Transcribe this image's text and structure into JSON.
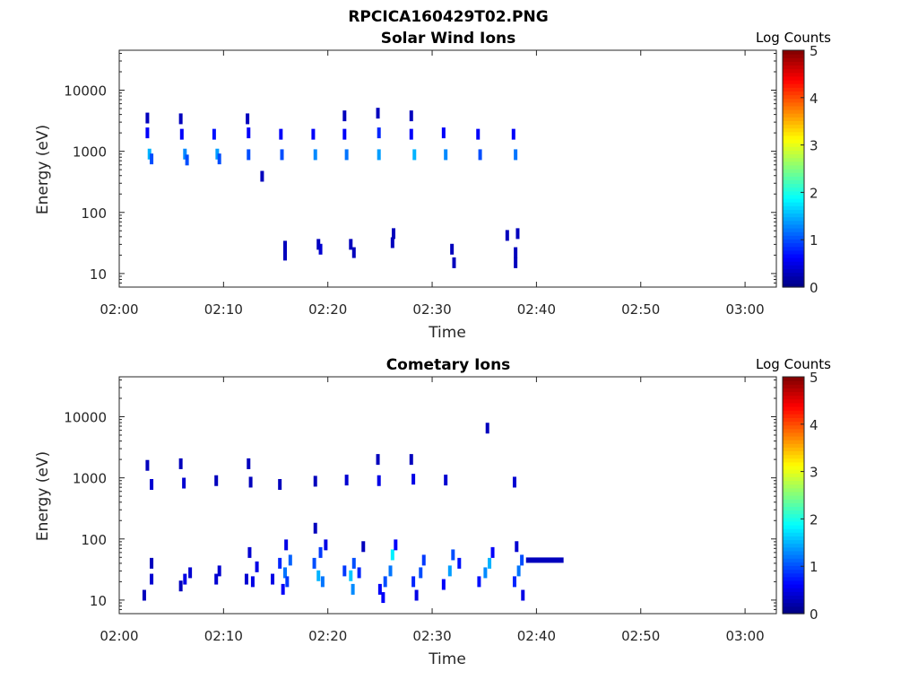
{
  "figure": {
    "title": "RPCICA160429T02.PNG"
  },
  "colorbar": {
    "label": "Log Counts",
    "ticks": [
      "0",
      "1",
      "2",
      "3",
      "4",
      "5"
    ],
    "range": [
      0,
      5
    ],
    "colormap": "jet"
  },
  "chart_data": [
    {
      "type": "heatmap",
      "title": "Solar Wind Ions",
      "xlabel": "Time",
      "ylabel": "Energy (eV)",
      "x_ticks": [
        "02:00",
        "02:10",
        "02:20",
        "02:30",
        "02:40",
        "02:50",
        "03:00"
      ],
      "y_ticks": [
        "10",
        "100",
        "1000",
        "10000"
      ],
      "xlim_minutes": [
        0,
        63
      ],
      "ylim_eV": [
        6,
        45000
      ],
      "yscale": "log",
      "colorbar_label": "Log Counts",
      "points": [
        {
          "t": 2.7,
          "e": 3500,
          "c": 0.3
        },
        {
          "t": 2.7,
          "e": 2000,
          "c": 0.6
        },
        {
          "t": 2.9,
          "e": 900,
          "c": 1.5
        },
        {
          "t": 3.1,
          "e": 750,
          "c": 1.0
        },
        {
          "t": 5.9,
          "e": 3400,
          "c": 0.3
        },
        {
          "t": 6.0,
          "e": 1900,
          "c": 0.6
        },
        {
          "t": 6.3,
          "e": 900,
          "c": 1.3
        },
        {
          "t": 6.5,
          "e": 720,
          "c": 1.0
        },
        {
          "t": 9.1,
          "e": 1900,
          "c": 0.7
        },
        {
          "t": 9.4,
          "e": 900,
          "c": 1.4
        },
        {
          "t": 9.6,
          "e": 750,
          "c": 1.0
        },
        {
          "t": 12.3,
          "e": 3400,
          "c": 0.3
        },
        {
          "t": 12.4,
          "e": 2000,
          "c": 0.6
        },
        {
          "t": 12.4,
          "e": 880,
          "c": 1.0
        },
        {
          "t": 13.7,
          "e": 390,
          "c": 0.3
        },
        {
          "t": 15.5,
          "e": 1900,
          "c": 0.6
        },
        {
          "t": 15.6,
          "e": 880,
          "c": 1.0
        },
        {
          "t": 18.6,
          "e": 1900,
          "c": 0.6
        },
        {
          "t": 18.8,
          "e": 880,
          "c": 1.3
        },
        {
          "t": 21.6,
          "e": 3800,
          "c": 0.3
        },
        {
          "t": 21.6,
          "e": 1900,
          "c": 0.6
        },
        {
          "t": 21.8,
          "e": 880,
          "c": 1.2
        },
        {
          "t": 24.8,
          "e": 4200,
          "c": 0.3
        },
        {
          "t": 24.9,
          "e": 2000,
          "c": 0.8
        },
        {
          "t": 24.9,
          "e": 880,
          "c": 1.4
        },
        {
          "t": 28.0,
          "e": 3800,
          "c": 0.3
        },
        {
          "t": 28.0,
          "e": 1900,
          "c": 0.6
        },
        {
          "t": 28.3,
          "e": 880,
          "c": 1.5
        },
        {
          "t": 31.1,
          "e": 2000,
          "c": 0.6
        },
        {
          "t": 31.3,
          "e": 880,
          "c": 1.3
        },
        {
          "t": 34.4,
          "e": 1900,
          "c": 0.6
        },
        {
          "t": 34.6,
          "e": 880,
          "c": 1.0
        },
        {
          "t": 37.8,
          "e": 1900,
          "c": 0.6
        },
        {
          "t": 38.0,
          "e": 880,
          "c": 1.2
        },
        {
          "t": 15.9,
          "e": 28,
          "c": 0.3
        },
        {
          "t": 15.9,
          "e": 20,
          "c": 0.3
        },
        {
          "t": 19.1,
          "e": 30,
          "c": 0.3
        },
        {
          "t": 19.3,
          "e": 25,
          "c": 0.4
        },
        {
          "t": 22.2,
          "e": 30,
          "c": 0.3
        },
        {
          "t": 22.5,
          "e": 22,
          "c": 0.3
        },
        {
          "t": 26.3,
          "e": 45,
          "c": 0.3
        },
        {
          "t": 26.2,
          "e": 32,
          "c": 0.3
        },
        {
          "t": 31.9,
          "e": 25,
          "c": 0.3
        },
        {
          "t": 32.1,
          "e": 15,
          "c": 0.3
        },
        {
          "t": 37.2,
          "e": 42,
          "c": 0.3
        },
        {
          "t": 38.2,
          "e": 45,
          "c": 0.3
        },
        {
          "t": 38.0,
          "e": 22,
          "c": 0.3
        },
        {
          "t": 38.0,
          "e": 15,
          "c": 0.3
        }
      ]
    },
    {
      "type": "heatmap",
      "title": "Cometary Ions",
      "xlabel": "Time",
      "ylabel": "Energy (eV)",
      "x_ticks": [
        "02:00",
        "02:10",
        "02:20",
        "02:30",
        "02:40",
        "02:50",
        "03:00"
      ],
      "y_ticks": [
        "10",
        "100",
        "1000",
        "10000"
      ],
      "xlim_minutes": [
        0,
        63
      ],
      "ylim_eV": [
        6,
        45000
      ],
      "yscale": "log",
      "colorbar_label": "Log Counts",
      "points": [
        {
          "t": 2.7,
          "e": 1600,
          "c": 0.3
        },
        {
          "t": 3.1,
          "e": 780,
          "c": 0.4
        },
        {
          "t": 5.9,
          "e": 1700,
          "c": 0.3
        },
        {
          "t": 6.2,
          "e": 820,
          "c": 0.4
        },
        {
          "t": 9.3,
          "e": 900,
          "c": 0.3
        },
        {
          "t": 12.4,
          "e": 1700,
          "c": 0.3
        },
        {
          "t": 12.6,
          "e": 850,
          "c": 0.3
        },
        {
          "t": 15.4,
          "e": 780,
          "c": 0.3
        },
        {
          "t": 18.8,
          "e": 880,
          "c": 0.3
        },
        {
          "t": 21.8,
          "e": 920,
          "c": 0.4
        },
        {
          "t": 24.8,
          "e": 2000,
          "c": 0.3
        },
        {
          "t": 24.9,
          "e": 900,
          "c": 0.5
        },
        {
          "t": 28.0,
          "e": 2000,
          "c": 0.3
        },
        {
          "t": 28.2,
          "e": 950,
          "c": 0.5
        },
        {
          "t": 31.3,
          "e": 920,
          "c": 0.4
        },
        {
          "t": 35.3,
          "e": 6500,
          "c": 0.3
        },
        {
          "t": 37.9,
          "e": 850,
          "c": 0.4
        },
        {
          "t": 2.4,
          "e": 12,
          "c": 0.3
        },
        {
          "t": 3.1,
          "e": 22,
          "c": 0.4
        },
        {
          "t": 3.1,
          "e": 40,
          "c": 0.3
        },
        {
          "t": 5.9,
          "e": 17,
          "c": 0.3
        },
        {
          "t": 6.3,
          "e": 22,
          "c": 0.5
        },
        {
          "t": 6.8,
          "e": 28,
          "c": 0.4
        },
        {
          "t": 9.3,
          "e": 22,
          "c": 0.4
        },
        {
          "t": 9.6,
          "e": 30,
          "c": 0.4
        },
        {
          "t": 12.2,
          "e": 22,
          "c": 0.4
        },
        {
          "t": 12.5,
          "e": 60,
          "c": 0.4
        },
        {
          "t": 12.8,
          "e": 20,
          "c": 0.5
        },
        {
          "t": 13.2,
          "e": 35,
          "c": 0.5
        },
        {
          "t": 15.4,
          "e": 40,
          "c": 0.8
        },
        {
          "t": 15.9,
          "e": 28,
          "c": 1.2
        },
        {
          "t": 16.1,
          "e": 20,
          "c": 0.9
        },
        {
          "t": 16.4,
          "e": 45,
          "c": 1.1
        },
        {
          "t": 16.0,
          "e": 80,
          "c": 0.5
        },
        {
          "t": 15.7,
          "e": 15,
          "c": 0.6
        },
        {
          "t": 14.7,
          "e": 22,
          "c": 0.5
        },
        {
          "t": 18.7,
          "e": 40,
          "c": 1.0
        },
        {
          "t": 19.1,
          "e": 25,
          "c": 1.5
        },
        {
          "t": 19.3,
          "e": 60,
          "c": 0.9
        },
        {
          "t": 19.5,
          "e": 20,
          "c": 1.2
        },
        {
          "t": 19.8,
          "e": 80,
          "c": 0.5
        },
        {
          "t": 18.8,
          "e": 150,
          "c": 0.3
        },
        {
          "t": 21.6,
          "e": 30,
          "c": 0.9
        },
        {
          "t": 22.2,
          "e": 25,
          "c": 1.6
        },
        {
          "t": 22.5,
          "e": 40,
          "c": 1.0
        },
        {
          "t": 23.0,
          "e": 28,
          "c": 0.8
        },
        {
          "t": 22.4,
          "e": 15,
          "c": 1.3
        },
        {
          "t": 23.4,
          "e": 75,
          "c": 0.3
        },
        {
          "t": 25.0,
          "e": 15,
          "c": 0.6
        },
        {
          "t": 25.5,
          "e": 20,
          "c": 1.0
        },
        {
          "t": 26.0,
          "e": 30,
          "c": 1.2
        },
        {
          "t": 26.2,
          "e": 55,
          "c": 1.8
        },
        {
          "t": 26.5,
          "e": 80,
          "c": 0.6
        },
        {
          "t": 25.3,
          "e": 11,
          "c": 0.6
        },
        {
          "t": 28.2,
          "e": 20,
          "c": 0.8
        },
        {
          "t": 28.9,
          "e": 28,
          "c": 1.0
        },
        {
          "t": 29.2,
          "e": 45,
          "c": 0.9
        },
        {
          "t": 28.5,
          "e": 12,
          "c": 0.5
        },
        {
          "t": 31.1,
          "e": 18,
          "c": 0.6
        },
        {
          "t": 31.7,
          "e": 30,
          "c": 1.4
        },
        {
          "t": 32.0,
          "e": 55,
          "c": 1.0
        },
        {
          "t": 32.6,
          "e": 40,
          "c": 0.7
        },
        {
          "t": 34.5,
          "e": 20,
          "c": 0.7
        },
        {
          "t": 35.1,
          "e": 28,
          "c": 1.3
        },
        {
          "t": 35.5,
          "e": 40,
          "c": 1.5
        },
        {
          "t": 35.8,
          "e": 60,
          "c": 0.6
        },
        {
          "t": 37.9,
          "e": 20,
          "c": 0.8
        },
        {
          "t": 38.3,
          "e": 30,
          "c": 1.2
        },
        {
          "t": 38.6,
          "e": 45,
          "c": 1.0
        },
        {
          "t": 38.7,
          "e": 12,
          "c": 0.5
        },
        {
          "t": 38.1,
          "e": 75,
          "c": 0.4
        }
      ],
      "band": {
        "t0": 39.0,
        "t1": 42.6,
        "e": 45,
        "c": 0.3
      }
    }
  ]
}
